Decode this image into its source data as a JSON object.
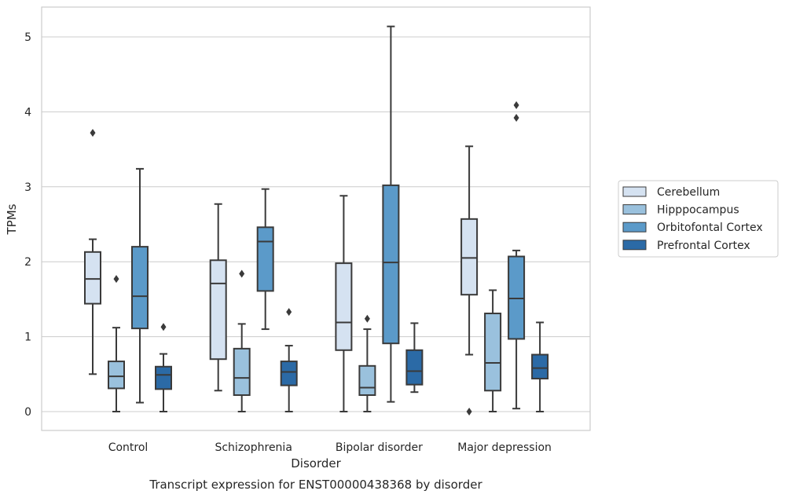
{
  "chart_data": {
    "type": "boxplot",
    "title": "",
    "caption": "Transcript expression for ENST00000438368 by disorder",
    "xlabel": "Disorder",
    "ylabel": "TPMs",
    "ylim": [
      -0.25,
      5.4
    ],
    "yticks": [
      "0",
      "1",
      "2",
      "3",
      "4",
      "5"
    ],
    "grid": "horizontal",
    "legend_position": "right",
    "categories": [
      "Control",
      "Schizophrenia",
      "Bipolar disorder",
      "Major depression"
    ],
    "series": [
      {
        "name": "Cerebellum",
        "color": "#d5e2f1",
        "boxes": [
          {
            "whislo": 0.5,
            "q1": 1.44,
            "med": 1.77,
            "q3": 2.13,
            "whishi": 2.3,
            "fliers": [
              3.72
            ]
          },
          {
            "whislo": 0.28,
            "q1": 0.7,
            "med": 1.71,
            "q3": 2.02,
            "whishi": 2.77,
            "fliers": []
          },
          {
            "whislo": 0.0,
            "q1": 0.82,
            "med": 1.19,
            "q3": 1.98,
            "whishi": 2.88,
            "fliers": []
          },
          {
            "whislo": 0.76,
            "q1": 1.56,
            "med": 2.05,
            "q3": 2.57,
            "whishi": 3.54,
            "fliers": [
              0.0
            ]
          }
        ]
      },
      {
        "name": "Hipppocampus",
        "color": "#9ac1dd",
        "boxes": [
          {
            "whislo": 0.0,
            "q1": 0.31,
            "med": 0.47,
            "q3": 0.67,
            "whishi": 1.12,
            "fliers": [
              1.77
            ]
          },
          {
            "whislo": 0.0,
            "q1": 0.22,
            "med": 0.45,
            "q3": 0.84,
            "whishi": 1.17,
            "fliers": [
              1.84
            ]
          },
          {
            "whislo": 0.0,
            "q1": 0.22,
            "med": 0.32,
            "q3": 0.61,
            "whishi": 1.1,
            "fliers": [
              1.24
            ]
          },
          {
            "whislo": 0.0,
            "q1": 0.28,
            "med": 0.65,
            "q3": 1.31,
            "whishi": 1.62,
            "fliers": []
          }
        ]
      },
      {
        "name": "Orbitofontal Cortex",
        "color": "#5b9ac9",
        "boxes": [
          {
            "whislo": 0.12,
            "q1": 1.11,
            "med": 1.54,
            "q3": 2.2,
            "whishi": 3.24,
            "fliers": []
          },
          {
            "whislo": 1.1,
            "q1": 1.61,
            "med": 2.27,
            "q3": 2.46,
            "whishi": 2.97,
            "fliers": []
          },
          {
            "whislo": 0.13,
            "q1": 0.91,
            "med": 1.99,
            "q3": 3.02,
            "whishi": 5.14,
            "fliers": []
          },
          {
            "whislo": 0.04,
            "q1": 0.97,
            "med": 1.51,
            "q3": 2.07,
            "whishi": 2.15,
            "fliers": [
              3.92,
              4.09
            ]
          }
        ]
      },
      {
        "name": "Prefrontal Cortex",
        "color": "#2b6aa6",
        "boxes": [
          {
            "whislo": 0.0,
            "q1": 0.3,
            "med": 0.49,
            "q3": 0.6,
            "whishi": 0.77,
            "fliers": [
              1.13
            ]
          },
          {
            "whislo": 0.0,
            "q1": 0.35,
            "med": 0.53,
            "q3": 0.67,
            "whishi": 0.88,
            "fliers": [
              1.33
            ]
          },
          {
            "whislo": 0.26,
            "q1": 0.36,
            "med": 0.54,
            "q3": 0.82,
            "whishi": 1.18,
            "fliers": []
          },
          {
            "whislo": 0.0,
            "q1": 0.44,
            "med": 0.58,
            "q3": 0.76,
            "whishi": 1.19,
            "fliers": []
          }
        ]
      }
    ]
  }
}
